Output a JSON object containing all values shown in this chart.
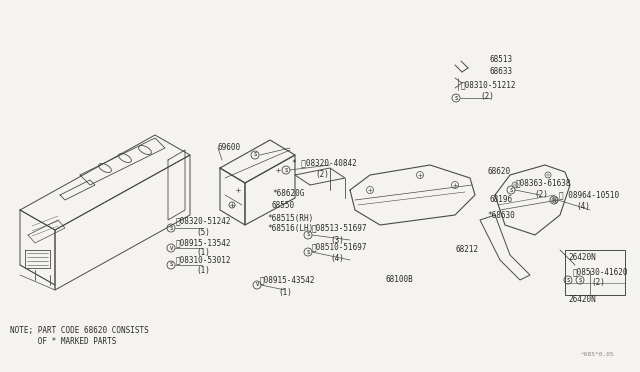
{
  "bg_color": "#f5f3ef",
  "line_color": "#4a4a4a",
  "text_color": "#2a2a2a",
  "note_line1": "NOTE; PART CODE 68620 CONSISTS",
  "note_line2": "      OF * MARKED PARTS",
  "ref_code": "^685*0.05",
  "figsize": [
    6.4,
    3.72
  ],
  "dpi": 100
}
